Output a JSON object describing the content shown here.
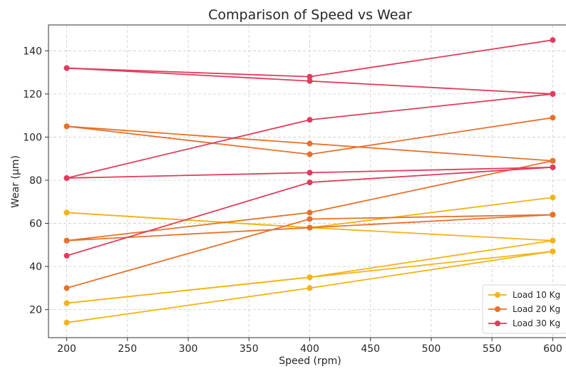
{
  "chart_data": {
    "type": "line",
    "title": "Comparison of Speed vs Wear",
    "xlabel": "Speed (rpm)",
    "ylabel": "Wear (µm)",
    "xlim": [
      185,
      615
    ],
    "ylim": [
      7,
      152
    ],
    "xticks": [
      200,
      250,
      300,
      350,
      400,
      450,
      500,
      550,
      600
    ],
    "yticks": [
      20,
      40,
      60,
      80,
      100,
      120,
      140
    ],
    "grid": true,
    "legend_position": "bottom-right",
    "series": [
      {
        "name": "Load 10 Kg",
        "color": "#f5b315",
        "lines": [
          {
            "x": [
              200,
              400,
              600
            ],
            "y": [
              65,
              58,
              52
            ]
          },
          {
            "x": [
              200,
              400,
              600
            ],
            "y": [
              23,
              35,
              47
            ]
          },
          {
            "x": [
              200,
              400,
              600
            ],
            "y": [
              14,
              30,
              47
            ]
          },
          {
            "x": [
              200,
              400,
              600
            ],
            "y": [
              65,
              58,
              72
            ]
          },
          {
            "x": [
              200,
              400,
              600
            ],
            "y": [
              23,
              35,
              52
            ]
          }
        ]
      },
      {
        "name": "Load 20 Kg",
        "color": "#e8702a",
        "lines": [
          {
            "x": [
              200,
              400,
              600
            ],
            "y": [
              105,
              92,
              109
            ]
          },
          {
            "x": [
              200,
              400,
              600
            ],
            "y": [
              52,
              65,
              89
            ]
          },
          {
            "x": [
              200,
              400,
              600
            ],
            "y": [
              30,
              62,
              64
            ]
          },
          {
            "x": [
              200,
              400,
              600
            ],
            "y": [
              105,
              97,
              89
            ]
          },
          {
            "x": [
              200,
              400,
              600
            ],
            "y": [
              52,
              58,
              64
            ]
          }
        ]
      },
      {
        "name": "Load 30 Kg",
        "color": "#e03c5c",
        "lines": [
          {
            "x": [
              200,
              400,
              600
            ],
            "y": [
              132,
              128,
              145
            ]
          },
          {
            "x": [
              200,
              400,
              600
            ],
            "y": [
              81,
              108,
              120
            ]
          },
          {
            "x": [
              200,
              400,
              600
            ],
            "y": [
              45,
              79,
              86
            ]
          },
          {
            "x": [
              200,
              400,
              600
            ],
            "y": [
              132,
              126,
              120
            ]
          },
          {
            "x": [
              200,
              400,
              600
            ],
            "y": [
              81,
              83.5,
              86
            ]
          }
        ]
      }
    ]
  }
}
